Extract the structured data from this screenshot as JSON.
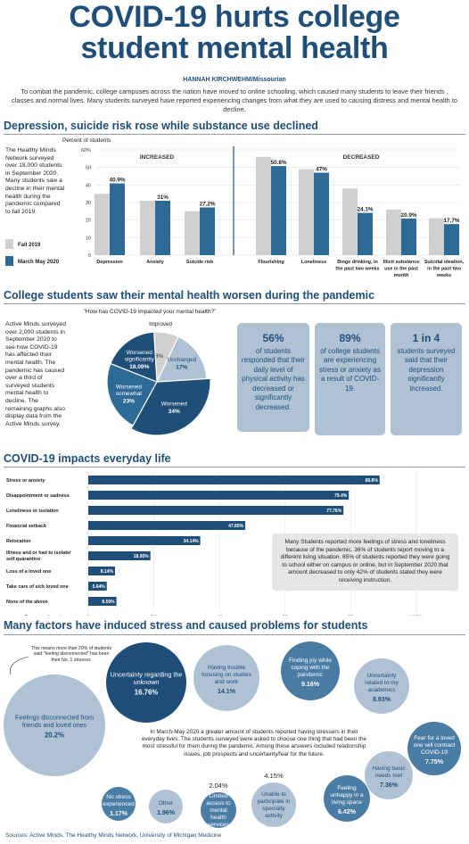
{
  "header": {
    "title_line1": "COVID-19 hurts college",
    "title_line2": "student mental health",
    "byline": "HANNAH KIRCHWEHM/Missourian",
    "intro": "To combat the pandemic, college campuses across the nation have moved to online schooling, which caused many students to leave their friends , classes and normal lives. Many students surveyed have reported experiencing changes from what they are used to causing distress and mental health to decline."
  },
  "section1": {
    "heading": "Depression, suicide risk rose while substance use declined",
    "sidebar": "The Healthy Minds Network surveyed over 18,000 students in September 2020. Many students saw a decline in their mental health during the pandemic compared to fall 2019.",
    "legend": [
      "Fall 2019",
      "March May 2020"
    ]
  },
  "section2": {
    "heading": "College students saw their mental health worsen during the pandemic",
    "sidebar": "Active Minds surveyed over 2,000 students in September 2020 to see how COVID-19 has affected their mental health. The pandemic has caused over a third of surveyed students mental health to decline. The remaining graphs also display data from the Active Minds survey.",
    "stats": [
      {
        "big": "56%",
        "text": "of students responded that their daily level of physical activity has decreased or significantly decreased."
      },
      {
        "big": "89%",
        "text": "of college students are experiencing stress or anxiety as a result of COVID-19."
      },
      {
        "big": "1 in 4",
        "text": "students surveyed said that their depression significantly increased."
      }
    ]
  },
  "section3": {
    "heading": "COVID-19 impacts everyday life",
    "note": "Many Students reported more feelings of stress and loneliness because of the pandemic. 36% of students report moving to a different living situation. 65% of students reported they were going to school either on campus or online, but in September 2020 that amount decreased to only 42% of students stated they were receiving instruction."
  },
  "section4": {
    "heading": "Many factors have induced stress and caused problems for students",
    "annotation": "This means more than 20% of students said \"feeling disconnected\" has been their No. 1 stressor.",
    "center_text": "In March-May 2020 a greater amount of students reported having stressers in their everyday lives. The students surveyed were asked to choose one thing that had been the most stressful for them during the pandemic. Among these answers included relationship issues, job prospects and uncertainty/fear for the future."
  },
  "sources": "Sources: Active Minds, The Healthy Minds Network, University of Michigan Medicine",
  "colors": {
    "navy": "#1f4e79",
    "blue": "#2e6a96",
    "steel": "#4a7ca4",
    "light": "#aec2d4",
    "gray": "#d0d0d0"
  },
  "chart_data": [
    {
      "type": "bar",
      "ylabel": "Percent of students",
      "ylim": [
        0,
        60
      ],
      "yticks": [
        "0",
        "10",
        "20",
        "30",
        "40",
        "50",
        "60%"
      ],
      "group_labels": [
        "INCREASED",
        "DECREASED"
      ],
      "categories": [
        "Depression",
        "Anxiety",
        "Suicide risk",
        "Flourishing",
        "Loneliness",
        "Binge drinking, in the past two weeks",
        "Illicit substance use in the past month",
        "Suicidal ideation, in the past two weeks"
      ],
      "series": [
        {
          "name": "Fall 2019",
          "values": [
            35,
            31,
            25,
            56,
            49,
            38,
            26,
            21
          ]
        },
        {
          "name": "March May 2020",
          "values": [
            40.9,
            31,
            27.2,
            50.8,
            47,
            24.1,
            20.9,
            17.7
          ]
        }
      ],
      "data_labels": [
        "40.9%",
        "31%",
        "27.2%",
        "50.8%",
        "47%",
        "24.1%",
        "20.9%",
        "17.7%"
      ]
    },
    {
      "type": "pie",
      "title": "\"How has COVID-19 impacted your mental health?\"",
      "slices": [
        {
          "label": "Improved",
          "value": 8,
          "display": "8%"
        },
        {
          "label": "Unchanged",
          "value": 17,
          "display": "17%"
        },
        {
          "label": "Worsened",
          "value": 34,
          "display": "34%"
        },
        {
          "label": "Worsened somewhat",
          "value": 23,
          "display": "23%"
        },
        {
          "label": "Worsened significantly",
          "value": 18.09,
          "display": "18.09%"
        }
      ]
    },
    {
      "type": "bar",
      "orientation": "horizontal",
      "xlabel": "Percent of students",
      "xlim": [
        0,
        100
      ],
      "xticks": [
        "0",
        "20",
        "40",
        "60",
        "80",
        "100%"
      ],
      "categories": [
        "Stress or anxiety",
        "Disappointment or sadness",
        "Loneliness or isolation",
        "Financial setback",
        "Relocation",
        "Illness and or had to isolate/ self quarantine",
        "Loss of a loved one",
        "Take care of sick loved one",
        "None of the above"
      ],
      "values": [
        88.8,
        79.4,
        77.76,
        47.85,
        34.14,
        18.95,
        8.14,
        5.64,
        8.59
      ],
      "data_labels": [
        "88.8%",
        "79.4%",
        "77.76%",
        "47.85%",
        "34.14%",
        "18.95%",
        "8.14%",
        "5.64%",
        "8.59%"
      ]
    },
    {
      "type": "bubble",
      "items": [
        {
          "label": "Feelings disconnected from friends and loved ones",
          "value": 20.2,
          "display": "20.2%"
        },
        {
          "label": "Uncertainty regarding the unknown",
          "value": 16.76,
          "display": "16.76%"
        },
        {
          "label": "Having trouble focusing on studies and work",
          "value": 14.1,
          "display": "14.1%"
        },
        {
          "label": "Finding joy while coping with the pandemic",
          "value": 9.16,
          "display": "9.16%"
        },
        {
          "label": "Uncertainty related to my academics",
          "value": 8.93,
          "display": "8.93%"
        },
        {
          "label": "Fear for a loved one will contract COVID-19",
          "value": 7.75,
          "display": "7.75%"
        },
        {
          "label": "Having basic needs met",
          "value": 7.36,
          "display": "7.36%"
        },
        {
          "label": "Feeling unhappy in a living space",
          "value": 6.42,
          "display": "6.42%"
        },
        {
          "label": "Unable to participate in specialty activity",
          "value": 4.15,
          "display": "4.15%"
        },
        {
          "label": "Limited access to mental health services",
          "value": 2.04,
          "display": "2.04%"
        },
        {
          "label": "Other",
          "value": 1.96,
          "display": "1.96%"
        },
        {
          "label": "No stress experienced",
          "value": 1.17,
          "display": "1.17%"
        }
      ]
    }
  ]
}
